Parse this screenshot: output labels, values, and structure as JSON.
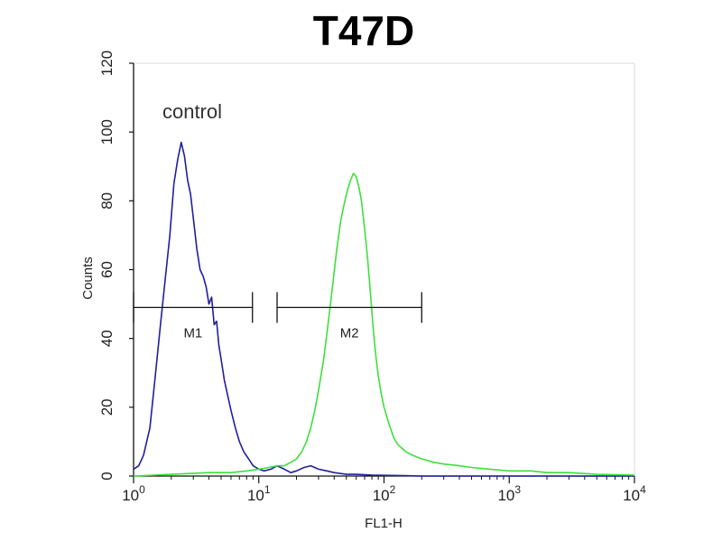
{
  "chart_data": {
    "type": "line",
    "title": "T47D",
    "xlabel": "FL1-H",
    "ylabel": "Counts",
    "x_scale": "log",
    "xlim": [
      1,
      10000
    ],
    "ylim": [
      0,
      120
    ],
    "grid": false,
    "x_ticks": [
      {
        "value": 1,
        "base": "10",
        "exp": "0"
      },
      {
        "value": 10,
        "base": "10",
        "exp": "1"
      },
      {
        "value": 100,
        "base": "10",
        "exp": "2"
      },
      {
        "value": 1000,
        "base": "10",
        "exp": "3"
      },
      {
        "value": 10000,
        "base": "10",
        "exp": "4"
      }
    ],
    "y_ticks": [
      0,
      20,
      40,
      60,
      80,
      100,
      120
    ],
    "annotations": [
      {
        "text": "control",
        "x": 1.7,
        "y": 104
      }
    ],
    "gates": [
      {
        "label": "M1",
        "x_start": 1.0,
        "x_end": 8.9,
        "y": 49
      },
      {
        "label": "M2",
        "x_start": 14,
        "x_end": 200,
        "y": 49
      }
    ],
    "series": [
      {
        "color": "#1f1f9e",
        "x": [
          1.0,
          1.1,
          1.2,
          1.35,
          1.5,
          1.65,
          1.8,
          1.95,
          2.1,
          2.25,
          2.4,
          2.55,
          2.7,
          2.85,
          3.0,
          3.2,
          3.4,
          3.6,
          3.8,
          4.0,
          4.2,
          4.4,
          4.6,
          4.8,
          5.0,
          5.3,
          5.6,
          6.0,
          6.5,
          7.0,
          7.6,
          8.3,
          9.0,
          10,
          11,
          12.5,
          14,
          16,
          18,
          20,
          23,
          26,
          30,
          35,
          40,
          50,
          60,
          80,
          100,
          150,
          200,
          400,
          1000,
          10000
        ],
        "y": [
          2,
          3,
          6,
          14,
          30,
          45,
          58,
          70,
          85,
          92,
          97,
          93,
          86,
          82,
          75,
          66,
          60,
          58,
          55,
          50,
          52,
          44,
          45,
          38,
          34,
          28,
          24,
          19,
          14,
          10,
          7,
          5,
          3,
          2,
          1.5,
          2,
          3,
          2,
          1,
          1.5,
          2.5,
          3,
          2,
          1.5,
          1,
          0.5,
          0.5,
          0.3,
          0.2,
          0.1,
          0,
          0,
          0,
          0
        ]
      },
      {
        "color": "#3de03d",
        "x": [
          1.0,
          2,
          4,
          6,
          8,
          10,
          12,
          14,
          16,
          18,
          20,
          22,
          24,
          26,
          28,
          30,
          33,
          36,
          39,
          42,
          45,
          48,
          51,
          54,
          57,
          60,
          63,
          66,
          70,
          74,
          78,
          82,
          86,
          90,
          95,
          100,
          110,
          120,
          130,
          140,
          150,
          170,
          200,
          250,
          300,
          400,
          500,
          700,
          1000,
          1500,
          2000,
          3000,
          5000,
          10000
        ],
        "y": [
          0,
          0.5,
          1,
          1,
          1.5,
          2,
          2.5,
          3,
          3,
          4,
          5,
          7,
          10,
          14,
          19,
          25,
          34,
          45,
          56,
          66,
          74,
          79,
          83,
          86,
          88,
          87,
          84,
          80,
          72,
          63,
          53,
          43,
          35,
          29,
          24,
          20,
          15,
          11,
          9,
          8,
          7,
          6,
          5,
          4,
          3.5,
          3,
          2.5,
          2,
          1.5,
          1.5,
          1,
          1,
          0.5,
          0.3
        ]
      }
    ]
  }
}
